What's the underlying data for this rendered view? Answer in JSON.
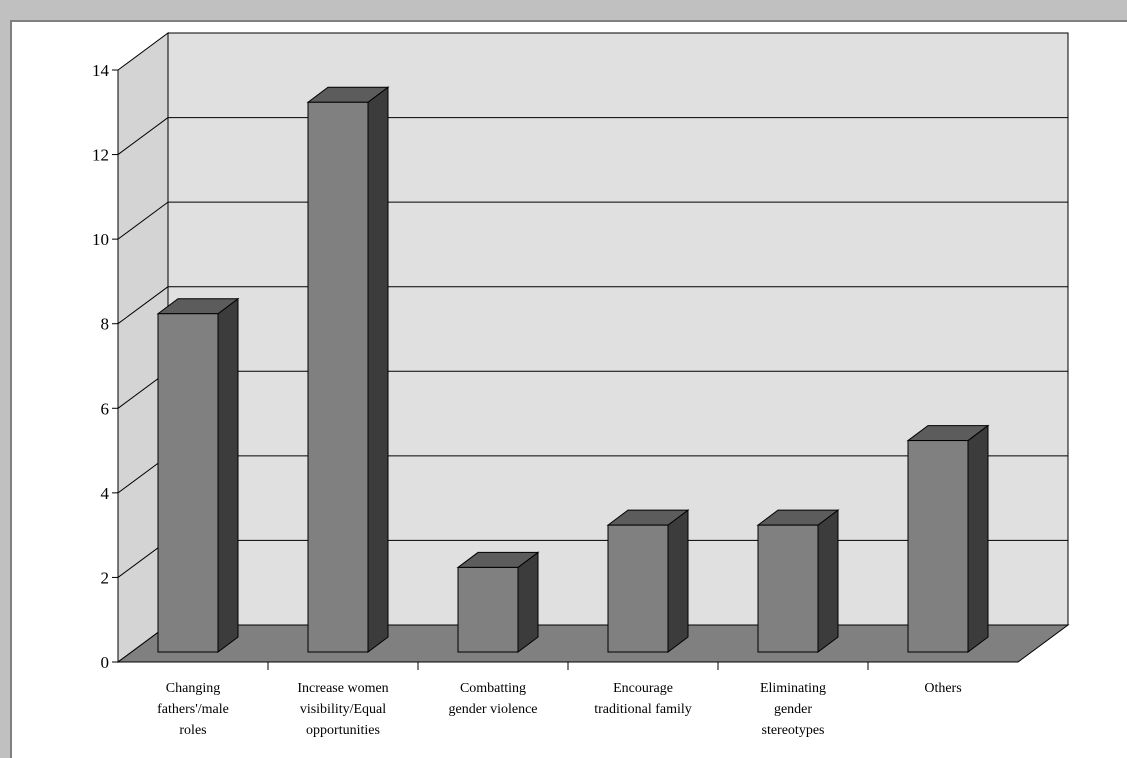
{
  "chart_data": {
    "type": "bar",
    "categories": [
      "Changing fathers'/male roles",
      "Increase women visibility/Equal opportunities",
      "Combatting gender violence",
      "Encourage traditional family",
      "Eliminating gender stereotypes",
      "Others"
    ],
    "category_lines": [
      [
        "Changing",
        "fathers'/male",
        "roles"
      ],
      [
        "Increase women",
        "visibility/Equal",
        "opportunities"
      ],
      [
        "Combatting",
        "gender violence"
      ],
      [
        "Encourage",
        "traditional family"
      ],
      [
        "Eliminating",
        "gender",
        "stereotypes"
      ],
      [
        "Others"
      ]
    ],
    "values": [
      8,
      13,
      2,
      3,
      3,
      5
    ],
    "ylim": [
      0,
      14
    ],
    "yticks": [
      0,
      2,
      4,
      6,
      8,
      10,
      12,
      14
    ],
    "grid": true,
    "three_d": true,
    "colors": {
      "bar_front": "#808080",
      "bar_top": "#5c5c5c",
      "bar_side": "#3c3c3c",
      "back_wall": "#e0e0e0",
      "side_wall": "#d4d4d4",
      "floor": "#808080",
      "page_bg": "#c0c0c0"
    }
  }
}
